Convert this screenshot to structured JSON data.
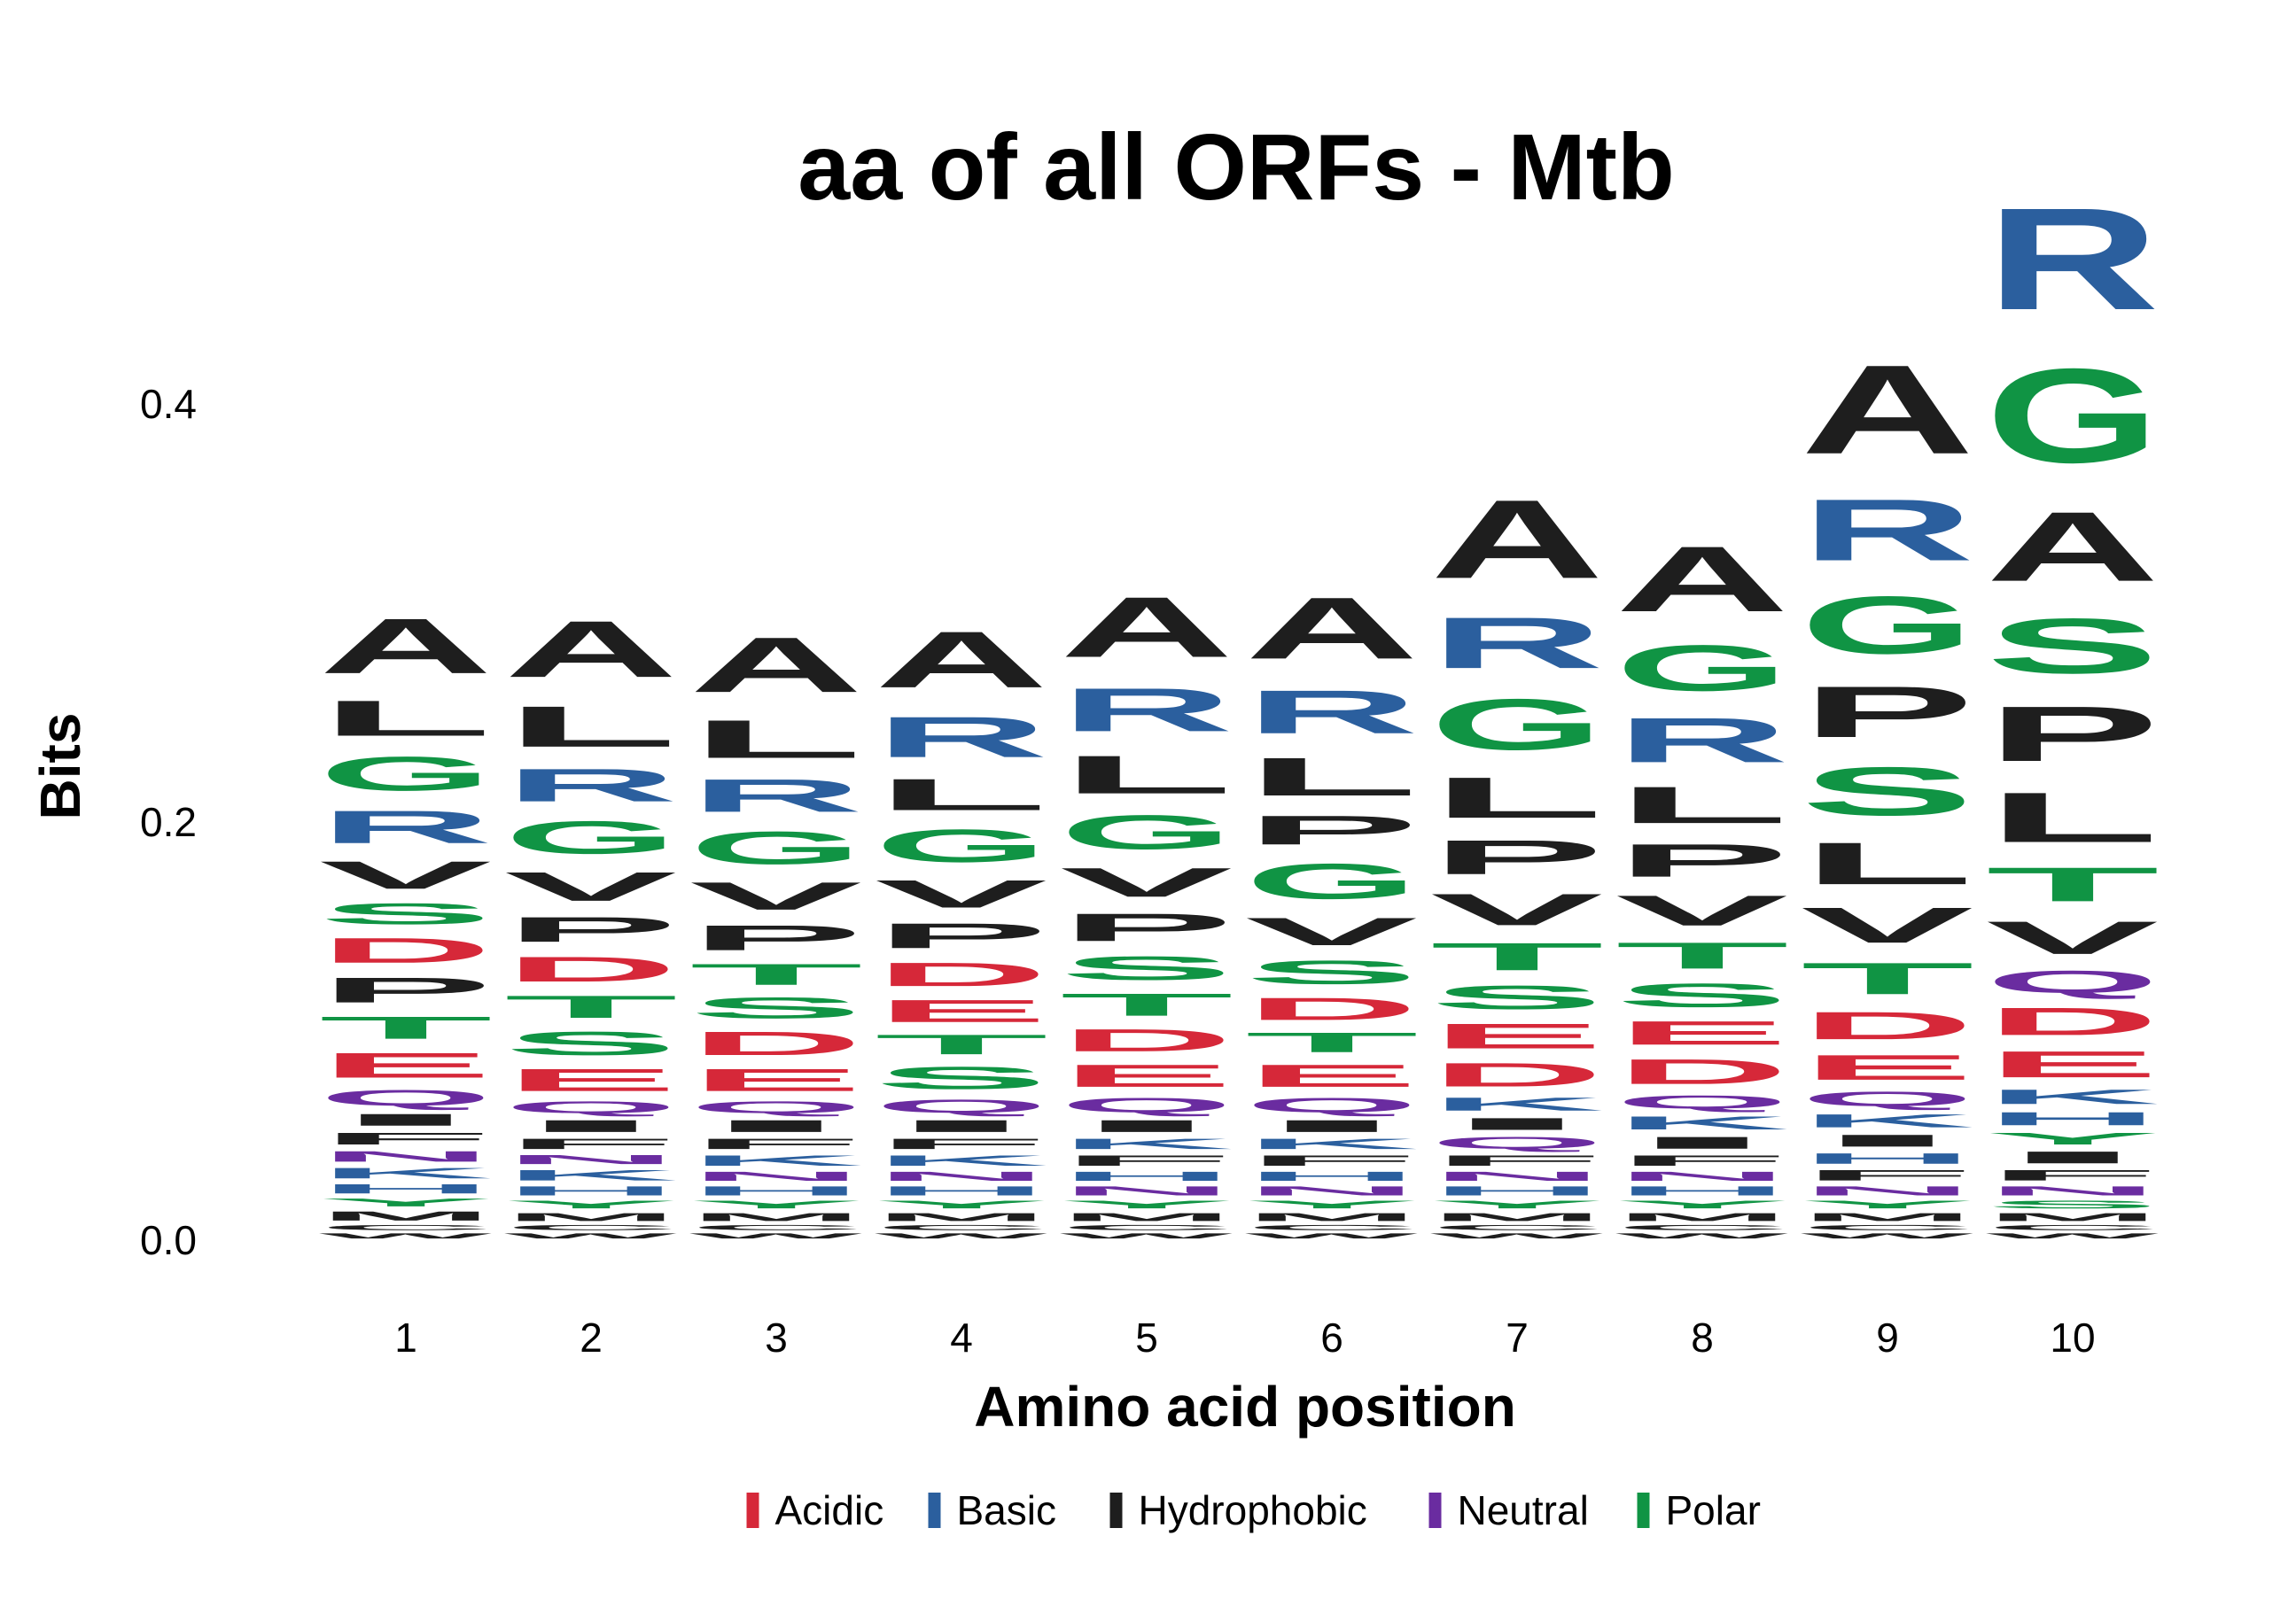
{
  "chart_data": {
    "type": "sequence-logo",
    "title": "aa of all ORFs - Mtb",
    "xlabel": "Amino acid position",
    "ylabel": "Bits",
    "ylim": [
      0,
      0.46
    ],
    "y_ticks": [
      "0.0",
      "0.2",
      "0.4"
    ],
    "y_tick_values": [
      0.0,
      0.2,
      0.4
    ],
    "positions": [
      "1",
      "2",
      "3",
      "4",
      "5",
      "6",
      "7",
      "8",
      "9",
      "10"
    ],
    "legend": [
      {
        "label": "Acidic",
        "color": "#d62839"
      },
      {
        "label": "Basic",
        "color": "#2b5f9e"
      },
      {
        "label": "Hydrophobic",
        "color": "#1e1e1e"
      },
      {
        "label": "Neutral",
        "color": "#6a2ca0"
      },
      {
        "label": "Polar",
        "color": "#109444"
      }
    ],
    "class_colors": {
      "acidic": "#d62839",
      "basic": "#2b5f9e",
      "hydrophobic": "#1e1e1e",
      "neutral": "#6a2ca0",
      "polar": "#109444"
    },
    "stacks": [
      [
        [
          "W",
          0.004
        ],
        [
          "C",
          0.004
        ],
        [
          "M",
          0.007
        ],
        [
          "Y",
          0.006
        ],
        [
          "H",
          0.007
        ],
        [
          "K",
          0.008
        ],
        [
          "N",
          0.008
        ],
        [
          "F",
          0.009
        ],
        [
          "I",
          0.009
        ],
        [
          "Q",
          0.012
        ],
        [
          "E",
          0.019
        ],
        [
          "T",
          0.017
        ],
        [
          "P",
          0.019
        ],
        [
          "D",
          0.019
        ],
        [
          "S",
          0.016
        ],
        [
          "V",
          0.021
        ],
        [
          "R",
          0.025
        ],
        [
          "G",
          0.026
        ],
        [
          "L",
          0.027
        ],
        [
          "A",
          0.042
        ]
      ],
      [
        [
          "W",
          0.004
        ],
        [
          "C",
          0.004
        ],
        [
          "M",
          0.006
        ],
        [
          "Y",
          0.006
        ],
        [
          "H",
          0.007
        ],
        [
          "K",
          0.008
        ],
        [
          "N",
          0.007
        ],
        [
          "F",
          0.008
        ],
        [
          "I",
          0.009
        ],
        [
          "Q",
          0.009
        ],
        [
          "E",
          0.017
        ],
        [
          "S",
          0.018
        ],
        [
          "T",
          0.017
        ],
        [
          "D",
          0.019
        ],
        [
          "P",
          0.019
        ],
        [
          "V",
          0.022
        ],
        [
          "G",
          0.025
        ],
        [
          "R",
          0.025
        ],
        [
          "L",
          0.031
        ],
        [
          "A",
          0.043
        ]
      ],
      [
        [
          "W",
          0.004
        ],
        [
          "C",
          0.004
        ],
        [
          "M",
          0.006
        ],
        [
          "Y",
          0.006
        ],
        [
          "H",
          0.007
        ],
        [
          "N",
          0.007
        ],
        [
          "K",
          0.008
        ],
        [
          "F",
          0.008
        ],
        [
          "I",
          0.009
        ],
        [
          "Q",
          0.009
        ],
        [
          "E",
          0.017
        ],
        [
          "D",
          0.018
        ],
        [
          "S",
          0.016
        ],
        [
          "T",
          0.016
        ],
        [
          "P",
          0.019
        ],
        [
          "V",
          0.021
        ],
        [
          "G",
          0.025
        ],
        [
          "R",
          0.025
        ],
        [
          "L",
          0.029
        ],
        [
          "A",
          0.042
        ]
      ],
      [
        [
          "W",
          0.004
        ],
        [
          "C",
          0.004
        ],
        [
          "M",
          0.006
        ],
        [
          "Y",
          0.006
        ],
        [
          "H",
          0.007
        ],
        [
          "N",
          0.007
        ],
        [
          "K",
          0.008
        ],
        [
          "F",
          0.008
        ],
        [
          "I",
          0.009
        ],
        [
          "Q",
          0.01
        ],
        [
          "S",
          0.017
        ],
        [
          "T",
          0.015
        ],
        [
          "E",
          0.017
        ],
        [
          "D",
          0.018
        ],
        [
          "P",
          0.019
        ],
        [
          "V",
          0.021
        ],
        [
          "G",
          0.025
        ],
        [
          "L",
          0.024
        ],
        [
          "R",
          0.031
        ],
        [
          "A",
          0.043
        ]
      ],
      [
        [
          "W",
          0.004
        ],
        [
          "C",
          0.004
        ],
        [
          "M",
          0.006
        ],
        [
          "Y",
          0.006
        ],
        [
          "N",
          0.007
        ],
        [
          "H",
          0.007
        ],
        [
          "F",
          0.008
        ],
        [
          "K",
          0.008
        ],
        [
          "I",
          0.009
        ],
        [
          "Q",
          0.011
        ],
        [
          "E",
          0.017
        ],
        [
          "D",
          0.017
        ],
        [
          "T",
          0.017
        ],
        [
          "S",
          0.018
        ],
        [
          "P",
          0.021
        ],
        [
          "V",
          0.022
        ],
        [
          "G",
          0.026
        ],
        [
          "L",
          0.029
        ],
        [
          "R",
          0.033
        ],
        [
          "A",
          0.046
        ]
      ],
      [
        [
          "W",
          0.004
        ],
        [
          "C",
          0.004
        ],
        [
          "M",
          0.006
        ],
        [
          "Y",
          0.006
        ],
        [
          "N",
          0.007
        ],
        [
          "H",
          0.007
        ],
        [
          "F",
          0.008
        ],
        [
          "K",
          0.008
        ],
        [
          "I",
          0.009
        ],
        [
          "Q",
          0.011
        ],
        [
          "E",
          0.017
        ],
        [
          "T",
          0.015
        ],
        [
          "D",
          0.017
        ],
        [
          "S",
          0.018
        ],
        [
          "V",
          0.021
        ],
        [
          "G",
          0.027
        ],
        [
          "P",
          0.022
        ],
        [
          "L",
          0.029
        ],
        [
          "R",
          0.033
        ],
        [
          "A",
          0.047
        ]
      ],
      [
        [
          "W",
          0.004
        ],
        [
          "C",
          0.004
        ],
        [
          "M",
          0.006
        ],
        [
          "Y",
          0.006
        ],
        [
          "H",
          0.007
        ],
        [
          "N",
          0.007
        ],
        [
          "F",
          0.008
        ],
        [
          "Q",
          0.009
        ],
        [
          "I",
          0.009
        ],
        [
          "K",
          0.01
        ],
        [
          "D",
          0.018
        ],
        [
          "E",
          0.019
        ],
        [
          "S",
          0.018
        ],
        [
          "T",
          0.021
        ],
        [
          "V",
          0.024
        ],
        [
          "P",
          0.026
        ],
        [
          "L",
          0.031
        ],
        [
          "G",
          0.039
        ],
        [
          "R",
          0.039
        ],
        [
          "A",
          0.06
        ]
      ],
      [
        [
          "W",
          0.004
        ],
        [
          "C",
          0.004
        ],
        [
          "M",
          0.006
        ],
        [
          "Y",
          0.006
        ],
        [
          "H",
          0.007
        ],
        [
          "N",
          0.007
        ],
        [
          "F",
          0.008
        ],
        [
          "I",
          0.009
        ],
        [
          "K",
          0.01
        ],
        [
          "Q",
          0.01
        ],
        [
          "D",
          0.019
        ],
        [
          "E",
          0.018
        ],
        [
          "S",
          0.018
        ],
        [
          "T",
          0.02
        ],
        [
          "V",
          0.023
        ],
        [
          "P",
          0.025
        ],
        [
          "L",
          0.028
        ],
        [
          "R",
          0.034
        ],
        [
          "G",
          0.035
        ],
        [
          "A",
          0.05
        ]
      ],
      [
        [
          "W",
          0.004
        ],
        [
          "C",
          0.004
        ],
        [
          "M",
          0.006
        ],
        [
          "Y",
          0.006
        ],
        [
          "N",
          0.007
        ],
        [
          "F",
          0.008
        ],
        [
          "H",
          0.008
        ],
        [
          "I",
          0.009
        ],
        [
          "K",
          0.01
        ],
        [
          "Q",
          0.011
        ],
        [
          "E",
          0.019
        ],
        [
          "D",
          0.021
        ],
        [
          "T",
          0.024
        ],
        [
          "V",
          0.027
        ],
        [
          "L",
          0.032
        ],
        [
          "S",
          0.037
        ],
        [
          "P",
          0.039
        ],
        [
          "G",
          0.044
        ],
        [
          "R",
          0.047
        ],
        [
          "A",
          0.068
        ]
      ],
      [
        [
          "W",
          0.004
        ],
        [
          "C",
          0.004
        ],
        [
          "M",
          0.006
        ],
        [
          "S",
          0.006
        ],
        [
          "N",
          0.007
        ],
        [
          "F",
          0.008
        ],
        [
          "I",
          0.009
        ],
        [
          "Y",
          0.009
        ],
        [
          "H",
          0.01
        ],
        [
          "K",
          0.011
        ],
        [
          "E",
          0.02
        ],
        [
          "D",
          0.021
        ],
        [
          "Q",
          0.017
        ],
        [
          "V",
          0.025
        ],
        [
          "T",
          0.026
        ],
        [
          "L",
          0.038
        ],
        [
          "P",
          0.042
        ],
        [
          "S",
          0.042
        ],
        [
          "A",
          0.053
        ],
        [
          "G",
          0.072
        ],
        [
          "R",
          0.078
        ]
      ]
    ]
  }
}
